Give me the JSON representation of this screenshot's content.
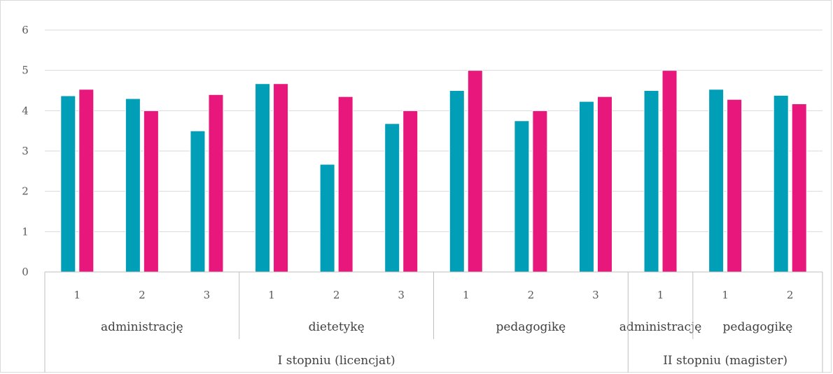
{
  "chart_data": {
    "type": "bar",
    "title": "",
    "xlabel": "",
    "ylabel": "",
    "ylim": [
      0,
      6
    ],
    "yticks": [
      "0",
      "1",
      "2",
      "3",
      "4",
      "5",
      "6"
    ],
    "grid": true,
    "legend": "none",
    "colors": [
      "#009fb7",
      "#e8177c"
    ],
    "categories": [
      "1",
      "2",
      "3",
      "1",
      "2",
      "3",
      "1",
      "2",
      "3",
      "1",
      "1",
      "2"
    ],
    "groups_level2": [
      {
        "label": "administrację",
        "span": 3
      },
      {
        "label": "dietetykę",
        "span": 3
      },
      {
        "label": "pedagogikę",
        "span": 3
      },
      {
        "label": "administrację",
        "span": 1
      },
      {
        "label": "pedagogikę",
        "span": 2
      }
    ],
    "groups_level1": [
      {
        "label": "I stopniu (licencjat)",
        "span": 9
      },
      {
        "label": "II stopniu (magister)",
        "span": 3
      }
    ],
    "series": [
      {
        "values": [
          4.37,
          4.3,
          3.5,
          4.67,
          2.67,
          3.68,
          4.5,
          3.75,
          4.23,
          4.5,
          4.53,
          4.38
        ]
      },
      {
        "values": [
          4.53,
          4.0,
          4.4,
          4.67,
          4.35,
          4.0,
          5.0,
          4.0,
          4.35,
          5.0,
          4.28,
          4.17
        ]
      }
    ]
  }
}
